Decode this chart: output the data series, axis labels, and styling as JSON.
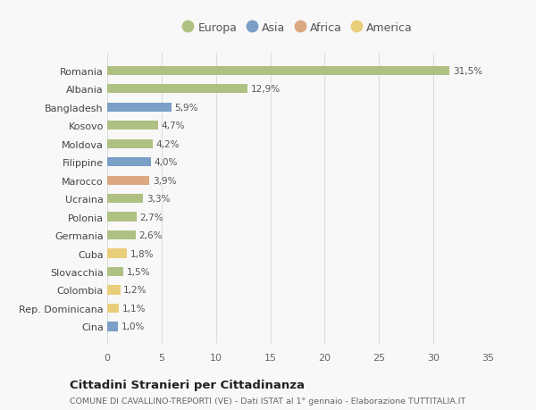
{
  "categories": [
    "Romania",
    "Albania",
    "Bangladesh",
    "Kosovo",
    "Moldova",
    "Filippine",
    "Marocco",
    "Ucraina",
    "Polonia",
    "Germania",
    "Cuba",
    "Slovacchia",
    "Colombia",
    "Rep. Dominicana",
    "Cina"
  ],
  "values": [
    31.5,
    12.9,
    5.9,
    4.7,
    4.2,
    4.0,
    3.9,
    3.3,
    2.7,
    2.6,
    1.8,
    1.5,
    1.2,
    1.1,
    1.0
  ],
  "labels": [
    "31,5%",
    "12,9%",
    "5,9%",
    "4,7%",
    "4,2%",
    "4,0%",
    "3,9%",
    "3,3%",
    "2,7%",
    "2,6%",
    "1,8%",
    "1,5%",
    "1,2%",
    "1,1%",
    "1,0%"
  ],
  "continents": [
    "Europa",
    "Europa",
    "Asia",
    "Europa",
    "Europa",
    "Asia",
    "Africa",
    "Europa",
    "Europa",
    "Europa",
    "America",
    "Europa",
    "America",
    "America",
    "Asia"
  ],
  "continent_colors": {
    "Europa": "#aec183",
    "Asia": "#7b9fc7",
    "Africa": "#dba882",
    "America": "#e8ce7a"
  },
  "legend_order": [
    "Europa",
    "Asia",
    "Africa",
    "America"
  ],
  "title": "Cittadini Stranieri per Cittadinanza",
  "subtitle": "COMUNE DI CAVALLINO-TREPORTI (VE) - Dati ISTAT al 1° gennaio - Elaborazione TUTTITALIA.IT",
  "xlim": [
    0,
    35
  ],
  "xticks": [
    0,
    5,
    10,
    15,
    20,
    25,
    30,
    35
  ],
  "background_color": "#f8f8f8",
  "grid_color": "#dddddd"
}
